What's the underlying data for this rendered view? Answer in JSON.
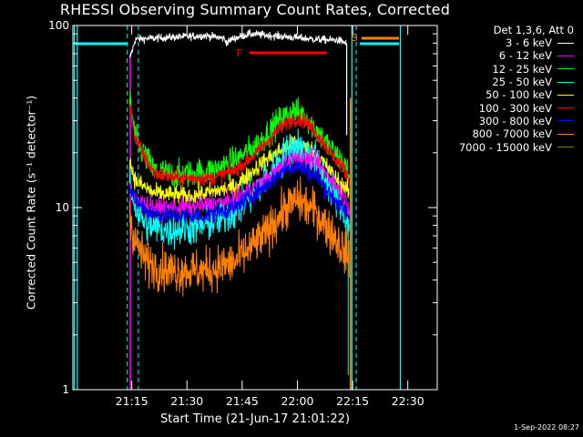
{
  "chart_data": {
    "type": "line",
    "title": "RHESSI Observing Summary Count Rates, Corrected",
    "xlabel": "Start Time (21-Jun-17 21:01:22)",
    "ylabel": "Corrected Count Rate (s⁻¹ detector⁻¹)",
    "yscale": "log",
    "ylim": [
      1,
      100
    ],
    "yticks": [
      {
        "value": 1,
        "label": "1"
      },
      {
        "value": 10,
        "label": "10"
      },
      {
        "value": 100,
        "label": "100"
      }
    ],
    "xlim_minutes": [
      -8,
      41.5
    ],
    "xticks": [
      {
        "t": 0,
        "label": "21:15"
      },
      {
        "t": 7.5,
        "label": "21:30"
      },
      {
        "t": 15,
        "label": "21:45"
      },
      {
        "t": 22.5,
        "label": "22:00"
      },
      {
        "t": 30,
        "label": "22:15"
      },
      {
        "t": 37.5,
        "label": "22:30"
      }
    ],
    "legend_header": "Det 1,3,6, Att 0",
    "legend_position": "right",
    "series": [
      {
        "name": "3 - 6 keV",
        "color": "#ffffff",
        "noise": 0.025,
        "x": [
          -0.3,
          0.5,
          5,
          10,
          12.5,
          13,
          13.5,
          16,
          19,
          22,
          25,
          28,
          29.2
        ],
        "y": [
          65,
          84,
          86,
          88,
          85,
          80,
          84,
          90,
          88,
          86,
          84,
          83,
          80
        ]
      },
      {
        "name": "12 - 25 keV",
        "color": "#00ff00",
        "noise": 0.09,
        "x": [
          -0.3,
          0.5,
          1.5,
          3,
          6,
          11,
          14,
          17,
          20,
          22,
          23.5,
          25,
          27,
          29,
          29.6
        ],
        "y": [
          40,
          24,
          20,
          16,
          15,
          16,
          18,
          22,
          30,
          34,
          32,
          27,
          21,
          17,
          15
        ]
      },
      {
        "name": "100 - 300 keV",
        "color": "#ff0000",
        "noise": 0.05,
        "x": [
          -0.3,
          0.5,
          1.5,
          3,
          6,
          11,
          14,
          17,
          20,
          22,
          23.5,
          25,
          27,
          29,
          29.6
        ],
        "y": [
          36,
          24,
          20,
          15.5,
          14.5,
          14.5,
          16,
          20,
          27,
          31,
          30,
          26,
          20,
          16,
          14
        ]
      },
      {
        "name": "50 - 100 keV",
        "color": "#ffff00",
        "noise": 0.06,
        "x": [
          -0.3,
          0.5,
          3,
          8,
          14,
          18,
          22,
          25,
          28,
          29.6
        ],
        "y": [
          18,
          14,
          12,
          11.5,
          13,
          18,
          23,
          20,
          14,
          12
        ]
      },
      {
        "name": "25 - 50 keV",
        "color": "#00ffff",
        "noise": 0.12,
        "x": [
          -0.3,
          0.5,
          2,
          5,
          10,
          14,
          18,
          21,
          22.5,
          25,
          28,
          29.6
        ],
        "y": [
          14,
          10,
          8,
          7.5,
          8,
          9.5,
          14,
          20,
          22,
          18,
          11,
          8
        ]
      },
      {
        "name": "6 - 12 keV",
        "color": "#ff00ff",
        "noise": 0.06,
        "x": [
          -0.3,
          0.5,
          3,
          8,
          14,
          18,
          22,
          25,
          28,
          29.6
        ],
        "y": [
          13,
          11,
          10,
          10,
          11,
          14,
          19,
          18,
          13,
          10
        ]
      },
      {
        "name": "300 - 800 keV",
        "color": "#0000ff",
        "noise": 0.06,
        "x": [
          -0.3,
          0.5,
          2,
          5,
          10,
          14,
          18,
          21,
          22.5,
          25,
          28,
          29.6
        ],
        "y": [
          13,
          11,
          9.5,
          9,
          9,
          10,
          13,
          16.5,
          17,
          15,
          10.5,
          9
        ]
      },
      {
        "name": "800 - 7000 keV",
        "color": "#ff8000",
        "noise": 0.14,
        "x": [
          -0.3,
          0.5,
          2,
          5,
          10,
          14,
          18,
          21,
          22.5,
          25,
          28,
          29.6
        ],
        "y": [
          9,
          6.5,
          5,
          4.5,
          4.5,
          5,
          7,
          10,
          11,
          9.5,
          6.5,
          5.2
        ]
      },
      {
        "name": "7000 - 15000 keV",
        "color": "#808000",
        "noise": 0,
        "x": [],
        "y": []
      }
    ],
    "markers": {
      "night_lines": [
        -7.8,
        -7.4,
        29.9,
        36.5
      ],
      "saa_dashed": [
        -0.6,
        0.9,
        30.5
      ],
      "saa_flag_ranges": [
        [
          -7.7,
          -0.6
        ],
        [
          31.0,
          36.3
        ]
      ],
      "flare_range": [
        16,
        26.5
      ],
      "flare_label": "F",
      "saa_range": [
        31.2,
        36.3
      ],
      "saa_label": "S"
    }
  },
  "timestamp": "1-Sep-2022 08:27"
}
